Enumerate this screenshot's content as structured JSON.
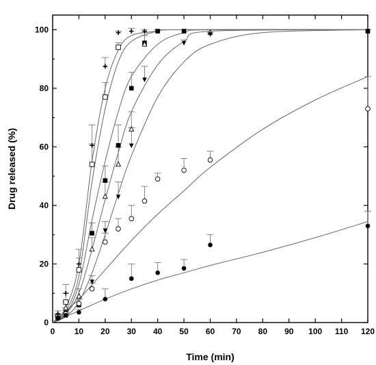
{
  "chart_data": {
    "type": "scatter",
    "title": "",
    "xlabel": "Time (min)",
    "ylabel": "Drug released (%)",
    "xlim": [
      0,
      120
    ],
    "ylim": [
      0,
      105
    ],
    "x_ticks": [
      0,
      10,
      20,
      30,
      40,
      50,
      60,
      70,
      80,
      90,
      100,
      110,
      120
    ],
    "y_ticks": [
      0,
      20,
      40,
      60,
      80,
      100
    ],
    "grid": false,
    "legend": "none",
    "series": [
      {
        "marker": "plus",
        "x": [
          2,
          5,
          10,
          15,
          20,
          25,
          30,
          35
        ],
        "y": [
          3,
          10,
          20,
          60.5,
          87.5,
          99,
          99.5,
          99.5
        ],
        "err": [
          1,
          3,
          5,
          7,
          3,
          0.5,
          1,
          0.5
        ],
        "fit": [
          [
            0,
            0
          ],
          [
            5,
            5
          ],
          [
            10,
            20
          ],
          [
            15,
            55
          ],
          [
            20,
            80
          ],
          [
            25,
            93
          ],
          [
            30,
            98
          ],
          [
            40,
            99.5
          ],
          [
            50,
            100
          ],
          [
            120,
            100
          ]
        ]
      },
      {
        "marker": "open-square",
        "x": [
          2,
          5,
          10,
          15,
          20,
          25
        ],
        "y": [
          2,
          7,
          18,
          54,
          77,
          94
        ],
        "err": [
          1,
          3,
          4,
          7,
          5,
          1.5
        ],
        "fit": [
          [
            0,
            0
          ],
          [
            5,
            4
          ],
          [
            10,
            16
          ],
          [
            15,
            48
          ],
          [
            20,
            73
          ],
          [
            25,
            89
          ],
          [
            30,
            96
          ],
          [
            40,
            99.5
          ],
          [
            50,
            100
          ],
          [
            120,
            100
          ]
        ]
      },
      {
        "marker": "filled-square",
        "x": [
          5,
          10,
          15,
          20,
          25,
          30,
          35,
          40,
          50,
          120
        ],
        "y": [
          2.5,
          6,
          30.5,
          48.5,
          60.5,
          80,
          95.5,
          99.5,
          99.5,
          99.5
        ],
        "err": [
          1,
          2,
          3.5,
          5,
          7,
          5.5,
          2.5,
          0.5,
          0.5,
          0.5
        ],
        "fit": [
          [
            0,
            0
          ],
          [
            5,
            3
          ],
          [
            10,
            13
          ],
          [
            15,
            35
          ],
          [
            20,
            55
          ],
          [
            25,
            72
          ],
          [
            30,
            84
          ],
          [
            40,
            95
          ],
          [
            50,
            99
          ],
          [
            60,
            100
          ],
          [
            120,
            100
          ]
        ]
      },
      {
        "marker": "open-triangle",
        "x": [
          2,
          5,
          10,
          15,
          20,
          25,
          30,
          35,
          60
        ],
        "y": [
          2,
          5,
          9,
          25,
          43,
          54,
          66,
          95,
          99
        ],
        "err": [
          1,
          2,
          2.5,
          4,
          5,
          6,
          6,
          4,
          0.5
        ],
        "fit": [
          [
            0,
            0
          ],
          [
            5,
            3
          ],
          [
            10,
            10
          ],
          [
            15,
            25
          ],
          [
            20,
            42
          ],
          [
            25,
            58
          ],
          [
            30,
            72
          ],
          [
            40,
            88
          ],
          [
            50,
            96
          ],
          [
            60,
            99.5
          ],
          [
            120,
            100
          ]
        ]
      },
      {
        "marker": "filled-down-triangle",
        "x": [
          2,
          5,
          10,
          15,
          20,
          25,
          30,
          35,
          50,
          60
        ],
        "y": [
          1.5,
          3.5,
          6,
          14,
          31.5,
          43,
          60.5,
          83,
          95.5,
          98.5
        ],
        "err": [
          1,
          1.5,
          2,
          2,
          3,
          5,
          6,
          4.5,
          1,
          0.5
        ],
        "fit": [
          [
            0,
            0
          ],
          [
            5,
            2
          ],
          [
            10,
            7
          ],
          [
            15,
            17
          ],
          [
            20,
            30
          ],
          [
            25,
            44
          ],
          [
            30,
            57
          ],
          [
            40,
            77
          ],
          [
            50,
            89
          ],
          [
            60,
            95
          ],
          [
            80,
            99
          ],
          [
            120,
            100
          ]
        ]
      },
      {
        "marker": "open-circle",
        "x": [
          2,
          5,
          10,
          15,
          20,
          25,
          30,
          35,
          40,
          50,
          60,
          120
        ],
        "y": [
          1.5,
          3,
          6.5,
          11.5,
          27.5,
          32,
          35.5,
          41.5,
          49,
          52,
          55.5,
          73
        ],
        "err": [
          1,
          1,
          1.5,
          2,
          3,
          3.5,
          4.5,
          5,
          2,
          4,
          3,
          11
        ],
        "fit": [
          [
            0,
            0
          ],
          [
            10,
            8
          ],
          [
            20,
            18
          ],
          [
            30,
            28
          ],
          [
            40,
            37
          ],
          [
            50,
            45
          ],
          [
            60,
            53
          ],
          [
            80,
            66
          ],
          [
            100,
            76
          ],
          [
            120,
            84
          ]
        ]
      },
      {
        "marker": "filled-circle",
        "x": [
          2,
          5,
          10,
          20,
          30,
          40,
          50,
          60,
          120
        ],
        "y": [
          1.5,
          2.5,
          3.5,
          8,
          15,
          17,
          18.5,
          26.5,
          33
        ],
        "err": [
          0.5,
          0.5,
          1,
          3.5,
          5,
          3.5,
          3,
          3.5,
          5
        ],
        "fit": [
          [
            0,
            0
          ],
          [
            10,
            4
          ],
          [
            20,
            8
          ],
          [
            30,
            11.5
          ],
          [
            40,
            14.5
          ],
          [
            50,
            17
          ],
          [
            60,
            19.5
          ],
          [
            80,
            24
          ],
          [
            100,
            29
          ],
          [
            120,
            34.5
          ]
        ]
      }
    ]
  }
}
